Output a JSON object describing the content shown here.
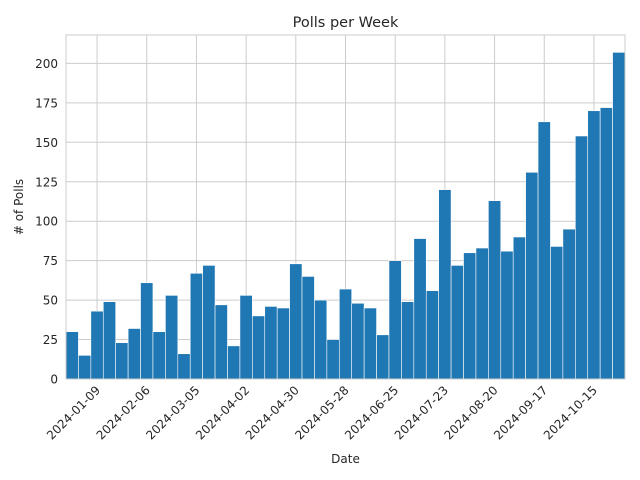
{
  "chart_data": {
    "type": "bar",
    "title": "Polls per Week",
    "xlabel": "Date",
    "ylabel": "# of Polls",
    "ylim": [
      0,
      218
    ],
    "yticks": [
      0,
      25,
      50,
      75,
      100,
      125,
      150,
      175,
      200
    ],
    "grid": true,
    "bar_color": "#1f77b4",
    "x_tick_labels": [
      "2024-01-09",
      "2024-02-06",
      "2024-03-05",
      "2024-04-02",
      "2024-04-30",
      "2024-05-28",
      "2024-06-25",
      "2024-07-23",
      "2024-08-20",
      "2024-09-17",
      "2024-10-15"
    ],
    "x_tick_positions": [
      2,
      6,
      10,
      14,
      18,
      22,
      26,
      30,
      34,
      38,
      42
    ],
    "values": [
      30,
      15,
      43,
      49,
      23,
      32,
      61,
      30,
      53,
      16,
      67,
      72,
      47,
      21,
      53,
      40,
      46,
      45,
      73,
      65,
      50,
      25,
      57,
      48,
      45,
      28,
      75,
      49,
      89,
      56,
      120,
      72,
      80,
      83,
      113,
      81,
      90,
      131,
      163,
      84,
      95,
      154,
      170,
      172,
      207
    ]
  }
}
